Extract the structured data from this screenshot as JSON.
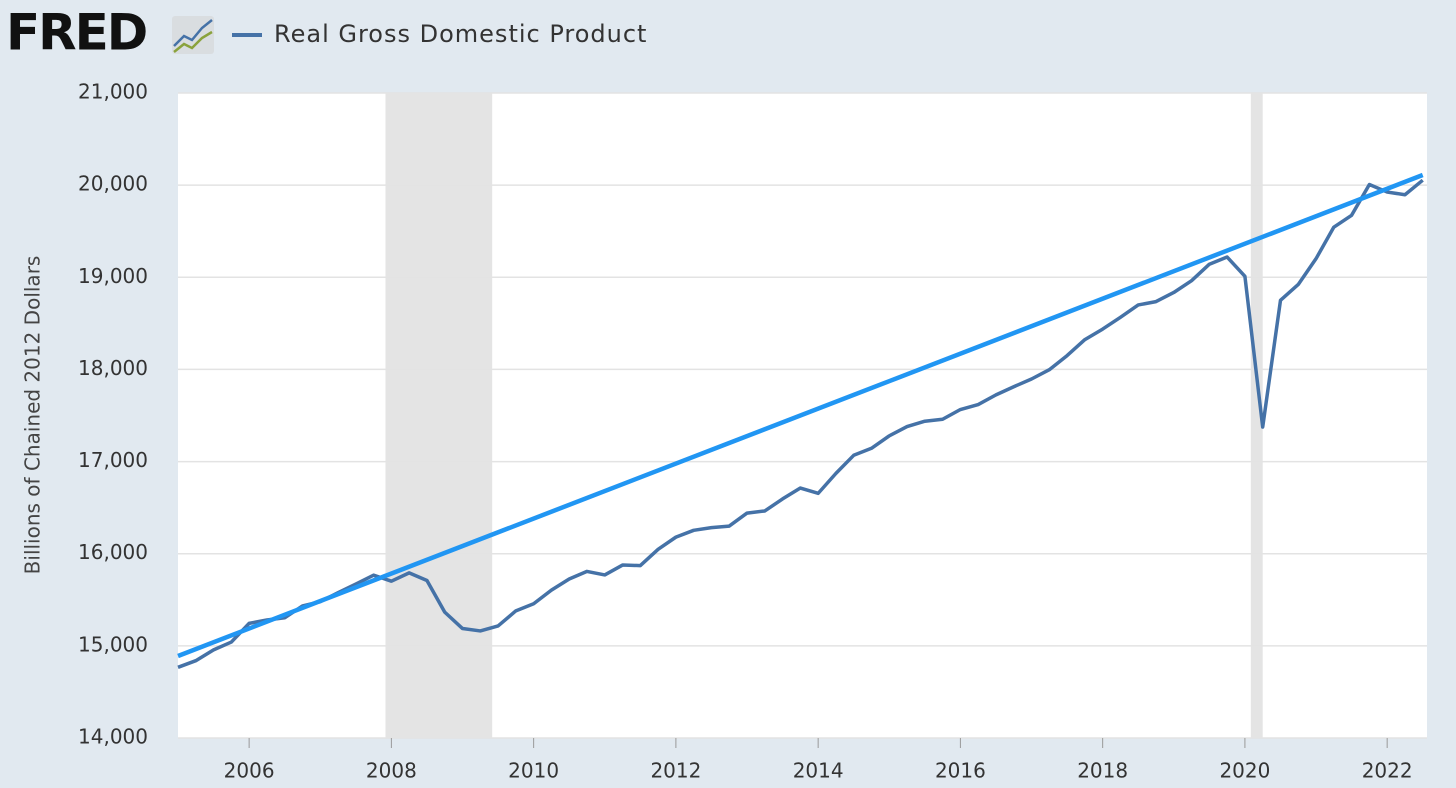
{
  "chart_data": {
    "type": "line",
    "logo": "FRED",
    "y_label": "Billions of Chained 2012 Dollars",
    "x": [
      2005,
      2005.25,
      2005.5,
      2005.75,
      2006,
      2006.25,
      2006.5,
      2006.75,
      2007,
      2007.25,
      2007.5,
      2007.75,
      2008,
      2008.25,
      2008.5,
      2008.75,
      2009,
      2009.25,
      2009.5,
      2009.75,
      2010,
      2010.25,
      2010.5,
      2010.75,
      2011,
      2011.25,
      2011.5,
      2011.75,
      2012,
      2012.25,
      2012.5,
      2012.75,
      2013,
      2013.25,
      2013.5,
      2013.75,
      2014,
      2014.25,
      2014.5,
      2014.75,
      2015,
      2015.25,
      2015.5,
      2015.75,
      2016,
      2016.25,
      2016.5,
      2016.75,
      2017,
      2017.25,
      2017.5,
      2017.75,
      2018,
      2018.25,
      2018.5,
      2018.75,
      2019,
      2019.25,
      2019.5,
      2019.75,
      2020,
      2020.25,
      2020.5,
      2020.75,
      2021,
      2021.25,
      2021.5,
      2021.75,
      2022,
      2022.25,
      2022.5
    ],
    "series": [
      {
        "name": "Real Gross Domestic Product",
        "color": "#4572a7",
        "values": [
          14767,
          14839,
          14956,
          15041,
          15244,
          15281,
          15305,
          15433,
          15479,
          15577,
          15671,
          15767,
          15702,
          15792,
          15709,
          15366,
          15188,
          15162,
          15216,
          15380,
          15457,
          15605,
          15726,
          15808,
          15770,
          15877,
          15871,
          16048,
          16180,
          16254,
          16283,
          16300,
          16441,
          16464,
          16595,
          16713,
          16655,
          16872,
          17068,
          17144,
          17279,
          17380,
          17438,
          17459,
          17565,
          17619,
          17724,
          17812,
          17896,
          17997,
          18150,
          18324,
          18438,
          18566,
          18700,
          18736,
          18835,
          18963,
          19142,
          19220,
          19011,
          17375,
          18750,
          18922,
          19202,
          19544,
          19673,
          20007,
          19925,
          19896,
          20054
        ]
      }
    ],
    "trend_line": {
      "x": [
        2005,
        2022.5
      ],
      "values": [
        14890,
        20110
      ],
      "color": "#2196f3"
    },
    "recessions": [
      [
        2007.917,
        2009.417
      ],
      [
        2020.083,
        2020.25
      ]
    ],
    "xlim": [
      2005,
      2022.56
    ],
    "xticks": [
      2006,
      2008,
      2010,
      2012,
      2014,
      2016,
      2018,
      2020,
      2022
    ],
    "ylim": [
      14000,
      21000
    ],
    "yticks": [
      {
        "value": 14000,
        "label": "14,000"
      },
      {
        "value": 15000,
        "label": "15,000"
      },
      {
        "value": 16000,
        "label": "16,000"
      },
      {
        "value": 17000,
        "label": "17,000"
      },
      {
        "value": 18000,
        "label": "18,000"
      },
      {
        "value": 19000,
        "label": "19,000"
      },
      {
        "value": 20000,
        "label": "20,000"
      },
      {
        "value": 21000,
        "label": "21,000"
      }
    ],
    "grid": true
  }
}
